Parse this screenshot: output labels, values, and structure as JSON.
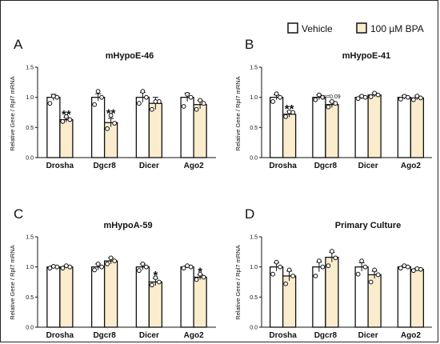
{
  "legend": {
    "items": [
      {
        "label": "Vehicle",
        "color": "#ffffff"
      },
      {
        "label": "100 µM BPA",
        "color": "#fbeccd"
      }
    ]
  },
  "colors": {
    "vehicle": "#ffffff",
    "bpa": "#fbeccd",
    "stroke": "#111111"
  },
  "chart_data": [
    {
      "type": "bar",
      "panel": "A",
      "title": "mHypoE-46",
      "ylabel": "Relative Gene / Rpl7 mRNA",
      "ylim": [
        0.0,
        1.5
      ],
      "yticks": [
        "0.0",
        "0.5",
        "1.0",
        "1.5"
      ],
      "categories": [
        "Drosha",
        "Dgcr8",
        "Dicer",
        "Ago2"
      ],
      "series": [
        {
          "name": "Vehicle",
          "values": [
            1.0,
            1.0,
            1.0,
            1.0
          ],
          "errors": [
            0.05,
            0.06,
            0.08,
            0.07
          ],
          "points": [
            [
              0.9,
              1.0,
              1.02
            ],
            [
              0.88,
              1.0,
              1.1
            ],
            [
              0.9,
              1.0,
              1.1
            ],
            [
              0.85,
              1.0,
              1.05
            ]
          ]
        },
        {
          "name": "100 µM BPA",
          "values": [
            0.63,
            0.58,
            0.9,
            0.88
          ],
          "errors": [
            0.04,
            0.07,
            0.1,
            0.07
          ],
          "points": [
            [
              0.6,
              0.63,
              0.68
            ],
            [
              0.48,
              0.57,
              0.7
            ],
            [
              0.8,
              0.93,
              0.93
            ],
            [
              0.8,
              0.9,
              0.95
            ]
          ]
        }
      ],
      "annotations": [
        {
          "category": "Drosha",
          "text": "**"
        },
        {
          "category": "Dgcr8",
          "text": "**"
        }
      ]
    },
    {
      "type": "bar",
      "panel": "B",
      "title": "mHypoE-41",
      "ylabel": "Relative Gene / Rpl7 mRNA",
      "ylim": [
        0.0,
        1.5
      ],
      "yticks": [
        "0.0",
        "0.5",
        "1.0",
        "1.5"
      ],
      "categories": [
        "Drosha",
        "Dgcr8",
        "Dicer",
        "Ago2"
      ],
      "series": [
        {
          "name": "Vehicle",
          "values": [
            1.0,
            1.0,
            1.0,
            1.0
          ],
          "errors": [
            0.04,
            0.04,
            0.03,
            0.03
          ],
          "points": [
            [
              0.93,
              1.0,
              1.06
            ],
            [
              0.96,
              1.0,
              1.04
            ],
            [
              0.98,
              1.0,
              1.02
            ],
            [
              0.97,
              1.0,
              1.02
            ]
          ]
        },
        {
          "name": "100 µM BPA",
          "values": [
            0.72,
            0.88,
            1.04,
            0.99
          ],
          "errors": [
            0.05,
            0.05,
            0.03,
            0.03
          ],
          "points": [
            [
              0.68,
              0.75,
              0.76
            ],
            [
              0.84,
              0.9,
              0.93
            ],
            [
              1.01,
              1.04,
              1.07
            ],
            [
              0.96,
              0.99,
              1.02
            ]
          ]
        }
      ],
      "annotations": [
        {
          "category": "Drosha",
          "text": "**"
        },
        {
          "category": "Dgcr8",
          "text": "p=0.09"
        }
      ]
    },
    {
      "type": "bar",
      "panel": "C",
      "title": "mHypoA-59",
      "ylabel": "Relative Gene / Rpl7 mRNA",
      "ylim": [
        0.0,
        1.5
      ],
      "yticks": [
        "0.0",
        "0.5",
        "1.0",
        "1.5"
      ],
      "categories": [
        "Drosha",
        "Dgcr8",
        "Dicer",
        "Ago2"
      ],
      "series": [
        {
          "name": "Vehicle",
          "values": [
            1.0,
            1.0,
            1.0,
            1.0
          ],
          "errors": [
            0.02,
            0.05,
            0.05,
            0.02
          ],
          "points": [
            [
              0.98,
              1.0,
              1.01
            ],
            [
              0.95,
              1.0,
              1.05
            ],
            [
              0.94,
              1.0,
              1.05
            ],
            [
              0.98,
              1.0,
              1.02
            ]
          ]
        },
        {
          "name": "100 µM BPA",
          "values": [
            1.0,
            1.1,
            0.75,
            0.83
          ],
          "errors": [
            0.02,
            0.05,
            0.06,
            0.04
          ],
          "points": [
            [
              0.98,
              1.0,
              1.02
            ],
            [
              1.05,
              1.1,
              1.15
            ],
            [
              0.7,
              0.75,
              0.82
            ],
            [
              0.79,
              0.83,
              0.88
            ]
          ]
        }
      ],
      "annotations": [
        {
          "category": "Dicer",
          "text": "*"
        },
        {
          "category": "Ago2",
          "text": "*"
        }
      ]
    },
    {
      "type": "bar",
      "panel": "D",
      "title": "Primary Culture",
      "ylabel": "Relative Gene / Rpl7 mRNA",
      "ylim": [
        0.0,
        1.5
      ],
      "yticks": [
        "0.0",
        "0.5",
        "1.0",
        "1.5"
      ],
      "categories": [
        "Drosha",
        "Dgcr8",
        "Dicer",
        "Ago2"
      ],
      "series": [
        {
          "name": "Vehicle",
          "values": [
            1.0,
            1.0,
            1.0,
            1.0
          ],
          "errors": [
            0.07,
            0.08,
            0.07,
            0.02
          ],
          "points": [
            [
              0.88,
              1.0,
              1.08
            ],
            [
              0.85,
              1.0,
              1.1
            ],
            [
              0.88,
              1.0,
              1.1
            ],
            [
              0.98,
              1.0,
              1.02
            ]
          ]
        },
        {
          "name": "100 µM BPA",
          "values": [
            0.85,
            1.16,
            0.87,
            0.96
          ],
          "errors": [
            0.08,
            0.08,
            0.06,
            0.02
          ],
          "points": [
            [
              0.72,
              0.85,
              0.95
            ],
            [
              1.02,
              1.15,
              1.26
            ],
            [
              0.75,
              0.87,
              0.95
            ],
            [
              0.94,
              0.96,
              0.97
            ]
          ]
        }
      ],
      "annotations": []
    }
  ]
}
